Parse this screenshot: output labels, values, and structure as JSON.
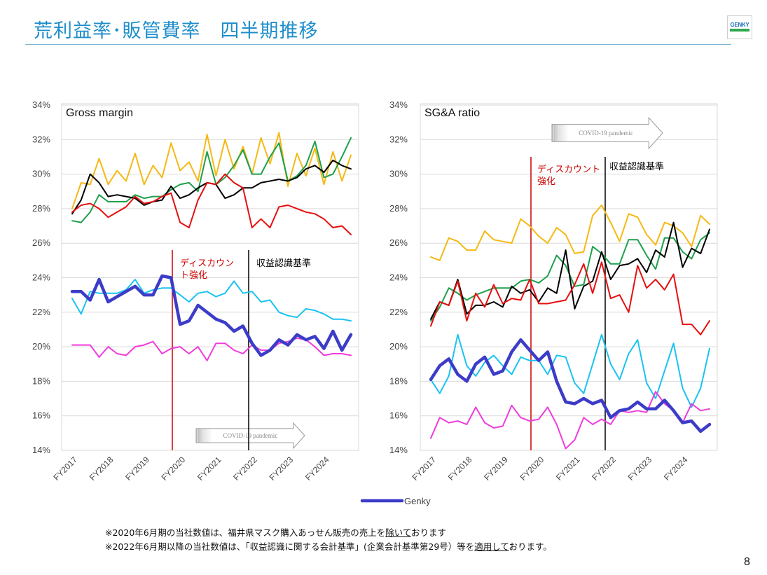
{
  "title": "荒利益率･販管費率　四半期推移",
  "logo_text": "GENKY",
  "page_number": "8",
  "footnotes": [
    {
      "before": "※2020年6月期の当社数値は、福井県マスク購入あっせん販売の売上を",
      "underline": "除いて",
      "after": "おります"
    },
    {
      "before": "※2022年6月期以降の当社数値は、「収益認識に関する会計基準」(企業会計基準第29号）等を",
      "underline": "適用して",
      "after": "おります。"
    }
  ],
  "legend": {
    "label": "Genky"
  },
  "colors": {
    "genky": "#3c3cc8",
    "gold": "#f5b914",
    "green": "#1ea04b",
    "black": "#000000",
    "red": "#e60f0f",
    "cyan": "#19c3f0",
    "magenta": "#f03cdc"
  },
  "chart_data": [
    {
      "type": "line",
      "title": "Gross margin",
      "ylim": [
        14,
        34
      ],
      "yticks": [
        "14%",
        "16%",
        "18%",
        "20%",
        "22%",
        "24%",
        "26%",
        "28%",
        "30%",
        "32%",
        "34%"
      ],
      "xticks": [
        "FY2017",
        "FY2018",
        "FY2019",
        "FY2020",
        "FY2021",
        "FY2022",
        "FY2023",
        "FY2024"
      ],
      "annotations": {
        "discount": [
          "ディスカウン",
          "ト強化"
        ],
        "revenue": "収益認識基準",
        "covid": "COVID-19 pandemic"
      },
      "series": [
        {
          "name": "Genky",
          "color": "genky",
          "width": 4.5,
          "values": [
            23.2,
            23.2,
            22.7,
            23.9,
            22.6,
            22.9,
            23.2,
            23.5,
            23.0,
            23.0,
            24.1,
            24.0,
            21.3,
            21.5,
            22.4,
            22.0,
            21.6,
            21.4,
            20.9,
            21.2,
            20.2,
            19.5,
            19.8,
            20.4,
            20.1,
            20.7,
            20.4,
            20.6,
            19.9,
            20.9,
            19.8,
            20.7
          ]
        },
        {
          "name": "",
          "color": "gold",
          "width": 2,
          "values": [
            28.0,
            29.5,
            29.4,
            30.9,
            29.4,
            30.2,
            29.6,
            31.2,
            29.4,
            30.5,
            29.8,
            31.8,
            30.2,
            30.7,
            29.6,
            32.3,
            29.9,
            32.0,
            30.3,
            31.6,
            30.0,
            32.1,
            30.6,
            32.4,
            29.3,
            31.2,
            29.9,
            31.5,
            29.4,
            31.3,
            29.6,
            31.1
          ]
        },
        {
          "name": "",
          "color": "green",
          "width": 2,
          "values": [
            27.3,
            27.2,
            27.8,
            28.8,
            28.4,
            28.4,
            28.4,
            28.8,
            28.6,
            28.7,
            28.7,
            29.1,
            29.4,
            29.5,
            29.0,
            31.3,
            29.4,
            29.8,
            30.5,
            31.4,
            30.0,
            30.0,
            31.0,
            31.8,
            29.6,
            29.9,
            30.5,
            31.9,
            29.8,
            30.0,
            31.0,
            32.1
          ]
        },
        {
          "name": "",
          "color": "black",
          "width": 2,
          "values": [
            27.7,
            28.5,
            30.0,
            29.5,
            28.7,
            28.8,
            28.7,
            28.6,
            28.2,
            28.4,
            28.5,
            29.3,
            28.6,
            28.8,
            29.2,
            29.5,
            29.4,
            28.6,
            28.8,
            29.2,
            29.2,
            29.5,
            29.6,
            29.7,
            29.6,
            29.8,
            30.3,
            30.5,
            30.1,
            30.8,
            30.5,
            30.3
          ]
        },
        {
          "name": "",
          "color": "red",
          "width": 2,
          "values": [
            27.8,
            28.2,
            28.3,
            28.0,
            27.5,
            27.8,
            28.1,
            28.7,
            28.3,
            28.4,
            28.7,
            28.9,
            27.2,
            26.9,
            28.5,
            29.5,
            29.4,
            30.0,
            29.5,
            29.2,
            26.9,
            27.4,
            26.9,
            28.1,
            28.2,
            28.0,
            27.8,
            27.7,
            27.4,
            26.9,
            27.0,
            26.5
          ]
        },
        {
          "name": "",
          "color": "cyan",
          "width": 2,
          "values": [
            22.8,
            21.9,
            23.2,
            23.1,
            23.1,
            23.1,
            23.3,
            23.9,
            23.1,
            23.3,
            23.4,
            23.4,
            23.0,
            22.6,
            23.1,
            23.2,
            22.9,
            23.1,
            23.8,
            23.1,
            23.2,
            22.6,
            22.7,
            22.0,
            21.8,
            21.7,
            22.2,
            22.1,
            21.9,
            21.6,
            21.6,
            21.5
          ]
        },
        {
          "name": "",
          "color": "magenta",
          "width": 2,
          "values": [
            20.1,
            20.1,
            20.1,
            19.4,
            20.0,
            19.6,
            19.5,
            20.0,
            20.1,
            20.3,
            19.6,
            19.9,
            20.0,
            19.6,
            20.0,
            19.2,
            20.2,
            20.2,
            19.8,
            19.6,
            20.1,
            19.8,
            19.8,
            20.2,
            20.3,
            20.5,
            20.4,
            20.0,
            19.5,
            19.6,
            19.6,
            19.5
          ]
        }
      ]
    },
    {
      "type": "line",
      "title": "SG&A ratio",
      "ylim": [
        14,
        34
      ],
      "yticks": [
        "14%",
        "16%",
        "18%",
        "20%",
        "22%",
        "24%",
        "26%",
        "28%",
        "30%",
        "32%",
        "34%"
      ],
      "xticks": [
        "FY2017",
        "FY2018",
        "FY2019",
        "FY2020",
        "FY2021",
        "FY2022",
        "FY2023",
        "FY2024"
      ],
      "annotations": {
        "discount": [
          "ディスカウント",
          "強化"
        ],
        "revenue": "収益認識基準",
        "covid": "COVID-19 pandemic"
      },
      "series": [
        {
          "name": "Genky",
          "color": "genky",
          "width": 4.5,
          "values": [
            18.1,
            18.9,
            19.3,
            18.4,
            18.0,
            19.0,
            19.4,
            18.4,
            18.6,
            19.7,
            20.4,
            19.8,
            19.2,
            19.7,
            18.0,
            16.8,
            16.7,
            17.0,
            16.7,
            16.9,
            15.9,
            16.3,
            16.4,
            16.8,
            16.4,
            16.4,
            16.9,
            16.3,
            15.6,
            15.7,
            15.1,
            15.5
          ]
        },
        {
          "name": "",
          "color": "gold",
          "width": 2,
          "values": [
            25.2,
            25.0,
            26.3,
            26.1,
            25.6,
            25.6,
            26.7,
            26.2,
            26.1,
            26.0,
            27.4,
            27.0,
            26.4,
            26.0,
            26.9,
            26.5,
            25.4,
            25.5,
            27.6,
            28.2,
            27.2,
            26.1,
            27.7,
            27.5,
            26.5,
            25.9,
            27.2,
            27.0,
            26.6,
            25.8,
            27.6,
            27.1
          ]
        },
        {
          "name": "",
          "color": "green",
          "width": 2,
          "values": [
            21.5,
            22.3,
            23.4,
            23.1,
            22.7,
            23.0,
            23.2,
            23.4,
            23.4,
            23.4,
            23.8,
            23.9,
            23.7,
            24.1,
            25.3,
            24.7,
            23.5,
            23.6,
            25.8,
            25.4,
            24.8,
            24.8,
            26.2,
            26.2,
            25.3,
            24.5,
            26.3,
            26.3,
            25.5,
            25.1,
            26.2,
            26.6
          ]
        },
        {
          "name": "",
          "color": "black",
          "width": 2,
          "values": [
            21.6,
            22.6,
            22.4,
            23.9,
            21.9,
            22.4,
            22.4,
            22.6,
            22.3,
            23.5,
            23.1,
            23.3,
            22.6,
            23.4,
            23.1,
            25.6,
            22.2,
            23.5,
            23.8,
            25.5,
            23.9,
            24.7,
            24.8,
            25.1,
            24.3,
            25.6,
            25.2,
            27.2,
            24.6,
            25.7,
            25.4,
            26.8
          ]
        },
        {
          "name": "",
          "color": "red",
          "width": 2,
          "values": [
            21.2,
            22.6,
            22.4,
            23.8,
            21.5,
            23.1,
            22.3,
            23.6,
            22.5,
            22.8,
            22.7,
            23.9,
            22.5,
            22.5,
            22.6,
            22.7,
            23.6,
            24.8,
            23.1,
            24.9,
            22.8,
            23.0,
            22.0,
            24.7,
            23.4,
            23.9,
            23.3,
            24.2,
            21.3,
            21.3,
            20.7,
            21.5
          ]
        },
        {
          "name": "",
          "color": "cyan",
          "width": 2,
          "values": [
            18.1,
            17.3,
            18.3,
            20.7,
            18.9,
            18.3,
            19.1,
            19.5,
            18.9,
            18.4,
            19.4,
            19.2,
            19.2,
            18.4,
            19.5,
            19.4,
            17.9,
            17.3,
            19.0,
            20.7,
            19.0,
            18.1,
            19.6,
            20.4,
            17.9,
            17.0,
            18.6,
            20.2,
            17.6,
            16.5,
            17.6,
            19.9
          ]
        },
        {
          "name": "",
          "color": "magenta",
          "width": 2,
          "values": [
            14.7,
            15.9,
            15.6,
            15.7,
            15.5,
            16.5,
            15.6,
            15.3,
            15.4,
            16.6,
            15.9,
            15.7,
            15.8,
            16.5,
            15.5,
            14.1,
            14.6,
            15.9,
            15.5,
            15.8,
            15.5,
            16.3,
            16.2,
            16.3,
            16.2,
            17.4,
            16.7,
            16.3,
            15.6,
            16.7,
            16.3,
            16.4
          ]
        }
      ]
    }
  ]
}
